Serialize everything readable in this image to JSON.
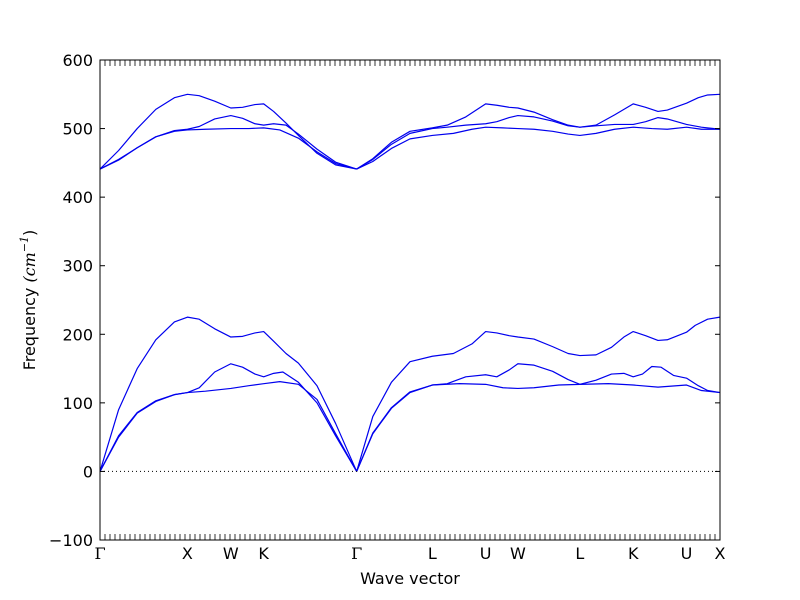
{
  "chart_data": {
    "type": "line",
    "title": "",
    "xlabel": "Wave vector",
    "ylabel": "Frequency",
    "ylabel_unit": "(cm",
    "ylabel_unit_exp": "−1",
    "ylabel_unit_close": ")",
    "ylim": [
      -100,
      600
    ],
    "yticks": [
      -100,
      0,
      100,
      200,
      300,
      400,
      500,
      600
    ],
    "xlim": [
      0,
      100
    ],
    "high_symmetry_points": [
      {
        "label": "Γ",
        "x": 0
      },
      {
        "label": "X",
        "x": 14.1
      },
      {
        "label": "W",
        "x": 21.1
      },
      {
        "label": "K",
        "x": 26.4
      },
      {
        "label": "Γ",
        "x": 41.4
      },
      {
        "label": "L",
        "x": 53.6
      },
      {
        "label": "U",
        "x": 62.2
      },
      {
        "label": "W",
        "x": 67.4
      },
      {
        "label": "L",
        "x": 77.4
      },
      {
        "label": "K",
        "x": 86.0
      },
      {
        "label": "U",
        "x": 94.6
      },
      {
        "label": "X",
        "x": 100
      }
    ],
    "zero_line": 0,
    "line_color": "#0000ee",
    "series": [
      {
        "points": [
          [
            0,
            0
          ],
          [
            3,
            50
          ],
          [
            6,
            85
          ],
          [
            9,
            102
          ],
          [
            12,
            112
          ],
          [
            14.1,
            115
          ],
          [
            17,
            117
          ],
          [
            21.1,
            121
          ],
          [
            24,
            125
          ],
          [
            26.4,
            128
          ],
          [
            29,
            131
          ],
          [
            32,
            127
          ],
          [
            35,
            105
          ],
          [
            38,
            55
          ],
          [
            41.4,
            0
          ]
        ]
      },
      {
        "points": [
          [
            0,
            0
          ],
          [
            3,
            52
          ],
          [
            6,
            86
          ],
          [
            9,
            103
          ],
          [
            12,
            112
          ],
          [
            14.1,
            115
          ],
          [
            16,
            122
          ],
          [
            18.5,
            145
          ],
          [
            21.1,
            157
          ],
          [
            23,
            152
          ],
          [
            25,
            142
          ],
          [
            26.4,
            138
          ],
          [
            28,
            143
          ],
          [
            29.5,
            145
          ],
          [
            32,
            130
          ],
          [
            35,
            100
          ],
          [
            38,
            52
          ],
          [
            41.4,
            0
          ]
        ]
      },
      {
        "points": [
          [
            0,
            0
          ],
          [
            3,
            90
          ],
          [
            6,
            150
          ],
          [
            9,
            192
          ],
          [
            12,
            218
          ],
          [
            14.1,
            225
          ],
          [
            16,
            222
          ],
          [
            18.5,
            208
          ],
          [
            21.1,
            196
          ],
          [
            23,
            197
          ],
          [
            25,
            202
          ],
          [
            26.4,
            204
          ],
          [
            28,
            190
          ],
          [
            30,
            172
          ],
          [
            32,
            158
          ],
          [
            35,
            125
          ],
          [
            38,
            70
          ],
          [
            41.4,
            0
          ]
        ]
      },
      {
        "points": [
          [
            41.4,
            0
          ],
          [
            44,
            55
          ],
          [
            47,
            92
          ],
          [
            50,
            115
          ],
          [
            53.6,
            126
          ],
          [
            58,
            128
          ],
          [
            62.2,
            127
          ],
          [
            65,
            122
          ],
          [
            67.4,
            121
          ],
          [
            70,
            122
          ],
          [
            74,
            126
          ],
          [
            77.4,
            127
          ],
          [
            82,
            128
          ],
          [
            86,
            126
          ],
          [
            90,
            123
          ],
          [
            94.6,
            126
          ],
          [
            97,
            118
          ],
          [
            100,
            115
          ]
        ]
      },
      {
        "points": [
          [
            41.4,
            0
          ],
          [
            44,
            56
          ],
          [
            47,
            93
          ],
          [
            50,
            116
          ],
          [
            53.6,
            126
          ],
          [
            56,
            128
          ],
          [
            59,
            138
          ],
          [
            62.2,
            141
          ],
          [
            64,
            138
          ],
          [
            66,
            148
          ],
          [
            67.4,
            157
          ],
          [
            70,
            155
          ],
          [
            73,
            146
          ],
          [
            75.5,
            134
          ],
          [
            77.4,
            127
          ],
          [
            80,
            133
          ],
          [
            82.5,
            142
          ],
          [
            84.5,
            143
          ],
          [
            86,
            138
          ],
          [
            87.5,
            142
          ],
          [
            89,
            153
          ],
          [
            90.5,
            152
          ],
          [
            92.5,
            140
          ],
          [
            94.6,
            136
          ],
          [
            96.5,
            125
          ],
          [
            98,
            118
          ],
          [
            100,
            115
          ]
        ]
      },
      {
        "points": [
          [
            41.4,
            0
          ],
          [
            44,
            80
          ],
          [
            47,
            130
          ],
          [
            50,
            160
          ],
          [
            53.6,
            168
          ],
          [
            57,
            172
          ],
          [
            60,
            186
          ],
          [
            62.2,
            204
          ],
          [
            64,
            202
          ],
          [
            66,
            198
          ],
          [
            67.4,
            196
          ],
          [
            70,
            193
          ],
          [
            73,
            182
          ],
          [
            75.5,
            172
          ],
          [
            77.4,
            169
          ],
          [
            80,
            170
          ],
          [
            82.5,
            181
          ],
          [
            84.5,
            196
          ],
          [
            86,
            204
          ],
          [
            88,
            198
          ],
          [
            90,
            191
          ],
          [
            91.5,
            192
          ],
          [
            94.6,
            203
          ],
          [
            96,
            213
          ],
          [
            98,
            222
          ],
          [
            100,
            225
          ]
        ]
      },
      {
        "points": [
          [
            0,
            441
          ],
          [
            3,
            455
          ],
          [
            6,
            472
          ],
          [
            9,
            488
          ],
          [
            12,
            496
          ],
          [
            14.1,
            498
          ],
          [
            17,
            499
          ],
          [
            21.1,
            500
          ],
          [
            24,
            500
          ],
          [
            26.4,
            501
          ],
          [
            29,
            498
          ],
          [
            32,
            486
          ],
          [
            35,
            466
          ],
          [
            38,
            449
          ],
          [
            41.4,
            441
          ]
        ]
      },
      {
        "points": [
          [
            0,
            441
          ],
          [
            3,
            454
          ],
          [
            6,
            472
          ],
          [
            9,
            488
          ],
          [
            12,
            497
          ],
          [
            14.1,
            499
          ],
          [
            16,
            503
          ],
          [
            18.5,
            514
          ],
          [
            21.1,
            519
          ],
          [
            23,
            515
          ],
          [
            25,
            507
          ],
          [
            26.4,
            505
          ],
          [
            28,
            507
          ],
          [
            30,
            505
          ],
          [
            32,
            492
          ],
          [
            35,
            470
          ],
          [
            38,
            451
          ],
          [
            41.4,
            441
          ]
        ]
      },
      {
        "points": [
          [
            0,
            441
          ],
          [
            3,
            468
          ],
          [
            6,
            500
          ],
          [
            9,
            528
          ],
          [
            12,
            545
          ],
          [
            14.1,
            550
          ],
          [
            16,
            548
          ],
          [
            18.5,
            540
          ],
          [
            21.1,
            530
          ],
          [
            23,
            531
          ],
          [
            25,
            535
          ],
          [
            26.4,
            536
          ],
          [
            28,
            525
          ],
          [
            30,
            508
          ],
          [
            32,
            490
          ],
          [
            35,
            464
          ],
          [
            38,
            447
          ],
          [
            41.4,
            441
          ]
        ]
      },
      {
        "points": [
          [
            41.4,
            441
          ],
          [
            44,
            452
          ],
          [
            47,
            471
          ],
          [
            50,
            485
          ],
          [
            53.6,
            490
          ],
          [
            57,
            493
          ],
          [
            60,
            499
          ],
          [
            62.2,
            502
          ],
          [
            65,
            501
          ],
          [
            67.4,
            500
          ],
          [
            70,
            499
          ],
          [
            73,
            496
          ],
          [
            75.5,
            492
          ],
          [
            77.4,
            490
          ],
          [
            80,
            493
          ],
          [
            83,
            499
          ],
          [
            86,
            502
          ],
          [
            89,
            500
          ],
          [
            91.5,
            499
          ],
          [
            94.6,
            502
          ],
          [
            97,
            499
          ],
          [
            100,
            499
          ]
        ]
      },
      {
        "points": [
          [
            41.4,
            441
          ],
          [
            44,
            455
          ],
          [
            47,
            477
          ],
          [
            50,
            493
          ],
          [
            53.6,
            500
          ],
          [
            56,
            502
          ],
          [
            59,
            505
          ],
          [
            62.2,
            507
          ],
          [
            64,
            510
          ],
          [
            66,
            516
          ],
          [
            67.4,
            519
          ],
          [
            70,
            517
          ],
          [
            73,
            511
          ],
          [
            75.5,
            504
          ],
          [
            77.4,
            502
          ],
          [
            80,
            504
          ],
          [
            83,
            506
          ],
          [
            86,
            506
          ],
          [
            88,
            510
          ],
          [
            90,
            516
          ],
          [
            91.5,
            514
          ],
          [
            94.6,
            506
          ],
          [
            97,
            502
          ],
          [
            100,
            499
          ]
        ]
      },
      {
        "points": [
          [
            41.4,
            441
          ],
          [
            44,
            456
          ],
          [
            47,
            480
          ],
          [
            50,
            496
          ],
          [
            53.6,
            501
          ],
          [
            56,
            505
          ],
          [
            59,
            517
          ],
          [
            62.2,
            536
          ],
          [
            64,
            534
          ],
          [
            66,
            531
          ],
          [
            67.4,
            530
          ],
          [
            70,
            524
          ],
          [
            73,
            513
          ],
          [
            75.5,
            505
          ],
          [
            77.4,
            502
          ],
          [
            80,
            505
          ],
          [
            83,
            520
          ],
          [
            86,
            536
          ],
          [
            88,
            531
          ],
          [
            90,
            525
          ],
          [
            91.5,
            527
          ],
          [
            94.6,
            537
          ],
          [
            96.5,
            545
          ],
          [
            98,
            549
          ],
          [
            100,
            550
          ]
        ]
      }
    ]
  }
}
